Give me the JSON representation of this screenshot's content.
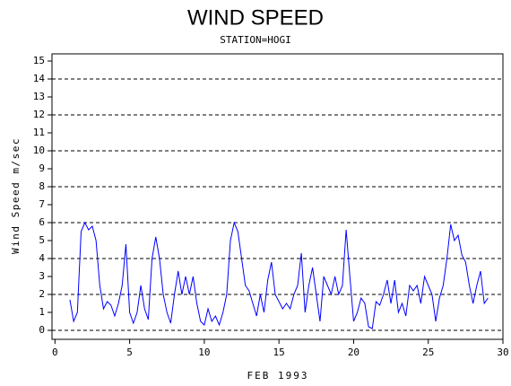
{
  "chart_data": {
    "type": "line",
    "title": "WIND SPEED",
    "subtitle": "STATION=HOGI",
    "x_label": "FEB 1993",
    "y_label": "Wind Speed m/sec",
    "xlim": [
      -0.2,
      30
    ],
    "xticks": [
      0,
      5,
      10,
      15,
      20,
      25,
      30
    ],
    "ylim": [
      -0.5,
      15.4
    ],
    "yticks": [
      0,
      1,
      2,
      3,
      4,
      5,
      6,
      7,
      8,
      9,
      10,
      11,
      12,
      13,
      14,
      15
    ],
    "grid": true,
    "color": "#0000ff",
    "x": [
      1,
      1.25,
      1.5,
      1.75,
      2,
      2.25,
      2.5,
      2.75,
      3,
      3.25,
      3.5,
      3.75,
      4,
      4.25,
      4.5,
      4.75,
      5,
      5.25,
      5.5,
      5.75,
      6,
      6.25,
      6.5,
      6.75,
      7,
      7.25,
      7.5,
      7.75,
      8,
      8.25,
      8.5,
      8.75,
      9,
      9.25,
      9.5,
      9.75,
      10,
      10.25,
      10.5,
      10.75,
      11,
      11.25,
      11.5,
      11.75,
      12,
      12.25,
      12.5,
      12.75,
      13,
      13.25,
      13.5,
      13.75,
      14,
      14.25,
      14.5,
      14.75,
      15,
      15.25,
      15.5,
      15.75,
      16,
      16.25,
      16.5,
      16.75,
      17,
      17.25,
      17.5,
      17.75,
      18,
      18.25,
      18.5,
      18.75,
      19,
      19.25,
      19.5,
      19.75,
      20,
      20.25,
      20.5,
      20.75,
      21,
      21.25,
      21.5,
      21.75,
      22,
      22.25,
      22.5,
      22.75,
      23,
      23.25,
      23.5,
      23.75,
      24,
      24.25,
      24.5,
      24.75,
      25,
      25.25,
      25.5,
      25.75,
      26,
      26.25,
      26.5,
      26.75,
      27,
      27.25,
      27.5,
      27.75,
      28,
      28.25,
      28.5,
      28.75,
      29
    ],
    "values": [
      1.7,
      0.5,
      1.0,
      5.5,
      6.0,
      5.6,
      5.8,
      5.0,
      2.5,
      1.2,
      1.6,
      1.4,
      0.8,
      1.5,
      2.5,
      4.8,
      1.0,
      0.4,
      1.0,
      2.5,
      1.2,
      0.6,
      4.0,
      5.2,
      4.0,
      2.0,
      1.0,
      0.4,
      2.0,
      3.3,
      2.0,
      3.0,
      2.0,
      3.0,
      1.5,
      0.5,
      0.3,
      1.2,
      0.5,
      0.8,
      0.3,
      1.0,
      2.0,
      5.0,
      6.0,
      5.5,
      4.0,
      2.5,
      2.2,
      1.5,
      0.8,
      2.0,
      1.0,
      2.8,
      3.8,
      2.0,
      1.6,
      1.2,
      1.5,
      1.2,
      2.0,
      2.5,
      4.3,
      1.0,
      2.5,
      3.5,
      2.0,
      0.5,
      3.0,
      2.5,
      2.0,
      3.0,
      2.0,
      2.5,
      5.6,
      3.0,
      0.5,
      1.0,
      1.8,
      1.5,
      0.2,
      0.1,
      1.6,
      1.4,
      2.0,
      2.8,
      1.5,
      2.8,
      1.0,
      1.5,
      0.8,
      2.5,
      2.2,
      2.5,
      1.5,
      3.0,
      2.5,
      2.0,
      0.5,
      1.8,
      2.5,
      4.0,
      5.9,
      5.0,
      5.3,
      4.2,
      3.8,
      2.5,
      1.5,
      2.5,
      3.3,
      1.5,
      1.8
    ]
  }
}
